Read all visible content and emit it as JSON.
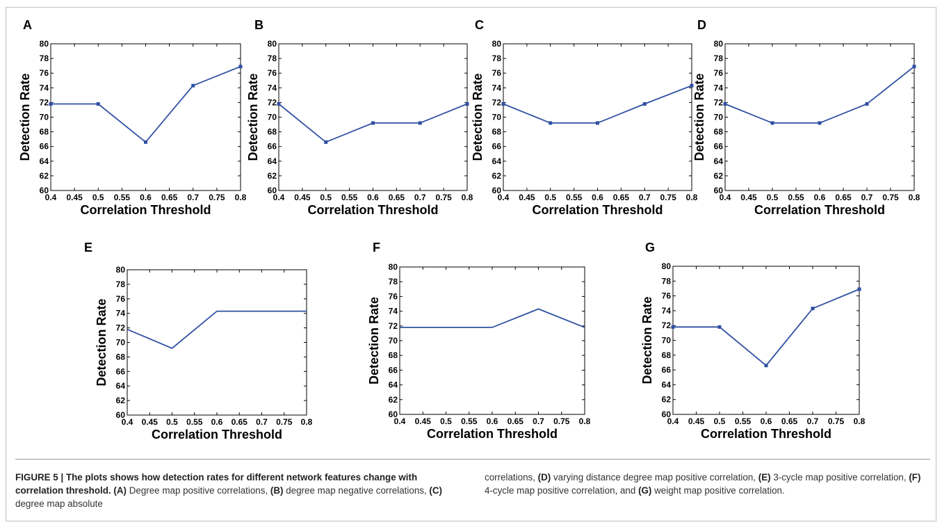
{
  "chart_data": [
    {
      "type": "line",
      "panel": "A",
      "xlabel": "Correlation Threshold",
      "ylabel": "Detection Rate",
      "xlim": [
        0.4,
        0.8
      ],
      "ylim": [
        60,
        80
      ],
      "xticks": [
        "0.4",
        "0.45",
        "0.5",
        "0.55",
        "0.6",
        "0.65",
        "0.7",
        "0.75",
        "0.8"
      ],
      "yticks": [
        "60",
        "62",
        "64",
        "66",
        "68",
        "70",
        "72",
        "74",
        "76",
        "78",
        "80"
      ],
      "x": [
        0.4,
        0.5,
        0.6,
        0.7,
        0.8
      ],
      "y": [
        71.8,
        71.8,
        66.6,
        74.3,
        76.9
      ],
      "markers": true,
      "color": "#2e4fa3"
    },
    {
      "type": "line",
      "panel": "B",
      "xlabel": "Correlation Threshold",
      "ylabel": "Detection Rate",
      "xlim": [
        0.4,
        0.8
      ],
      "ylim": [
        60,
        80
      ],
      "xticks": [
        "0.4",
        "0.45",
        "0.5",
        "0.55",
        "0.6",
        "0.65",
        "0.7",
        "0.75",
        "0.8"
      ],
      "yticks": [
        "60",
        "62",
        "64",
        "66",
        "68",
        "70",
        "72",
        "74",
        "76",
        "78",
        "80"
      ],
      "x": [
        0.4,
        0.5,
        0.6,
        0.7,
        0.8
      ],
      "y": [
        71.8,
        66.6,
        69.2,
        69.2,
        71.8
      ],
      "markers": true,
      "color": "#2e4fa3"
    },
    {
      "type": "line",
      "panel": "C",
      "xlabel": "Correlation Threshold",
      "ylabel": "Detection Rate",
      "xlim": [
        0.4,
        0.8
      ],
      "ylim": [
        60,
        80
      ],
      "xticks": [
        "0.4",
        "0.45",
        "0.5",
        "0.55",
        "0.6",
        "0.65",
        "0.7",
        "0.75",
        "0.8"
      ],
      "yticks": [
        "60",
        "62",
        "64",
        "66",
        "68",
        "70",
        "72",
        "74",
        "76",
        "78",
        "80"
      ],
      "x": [
        0.4,
        0.5,
        0.6,
        0.7,
        0.8
      ],
      "y": [
        71.8,
        69.2,
        69.2,
        71.8,
        74.3
      ],
      "markers": true,
      "color": "#2e4fa3"
    },
    {
      "type": "line",
      "panel": "D",
      "xlabel": "Correlation Threshold",
      "ylabel": "Detection Rate",
      "xlim": [
        0.4,
        0.8
      ],
      "ylim": [
        60,
        80
      ],
      "xticks": [
        "0.4",
        "0.45",
        "0.5",
        "0.55",
        "0.6",
        "0.65",
        "0.7",
        "0.75",
        "0.8"
      ],
      "yticks": [
        "60",
        "62",
        "64",
        "66",
        "68",
        "70",
        "72",
        "74",
        "76",
        "78",
        "80"
      ],
      "x": [
        0.4,
        0.5,
        0.6,
        0.7,
        0.8
      ],
      "y": [
        71.8,
        69.2,
        69.2,
        71.8,
        76.9
      ],
      "markers": true,
      "color": "#2e4fa3"
    },
    {
      "type": "line",
      "panel": "E",
      "xlabel": "Correlation Threshold",
      "ylabel": "Detection Rate",
      "xlim": [
        0.4,
        0.8
      ],
      "ylim": [
        60,
        80
      ],
      "xticks": [
        "0.4",
        "0.45",
        "0.5",
        "0.55",
        "0.6",
        "0.65",
        "0.7",
        "0.75",
        "0.8"
      ],
      "yticks": [
        "60",
        "62",
        "64",
        "66",
        "68",
        "70",
        "72",
        "74",
        "76",
        "78",
        "80"
      ],
      "x": [
        0.4,
        0.5,
        0.6,
        0.7,
        0.8
      ],
      "y": [
        71.8,
        69.2,
        74.3,
        74.3,
        74.3
      ],
      "markers": false,
      "color": "#2e4fa3"
    },
    {
      "type": "line",
      "panel": "F",
      "xlabel": "Correlation Threshold",
      "ylabel": "Detection Rate",
      "xlim": [
        0.4,
        0.8
      ],
      "ylim": [
        60,
        80
      ],
      "xticks": [
        "0.4",
        "0.45",
        "0.5",
        "0.55",
        "0.6",
        "0.65",
        "0.7",
        "0.75",
        "0.8"
      ],
      "yticks": [
        "60",
        "62",
        "64",
        "66",
        "68",
        "70",
        "72",
        "74",
        "76",
        "78",
        "80"
      ],
      "x": [
        0.4,
        0.5,
        0.6,
        0.7,
        0.8
      ],
      "y": [
        71.8,
        71.8,
        71.8,
        74.3,
        71.8
      ],
      "markers": false,
      "color": "#2e4fa3"
    },
    {
      "type": "line",
      "panel": "G",
      "xlabel": "Correlation Threshold",
      "ylabel": "Detection Rate",
      "xlim": [
        0.4,
        0.8
      ],
      "ylim": [
        60,
        80
      ],
      "xticks": [
        "0.4",
        "0.45",
        "0.5",
        "0.55",
        "0.6",
        "0.65",
        "0.7",
        "0.75",
        "0.8"
      ],
      "yticks": [
        "60",
        "62",
        "64",
        "66",
        "68",
        "70",
        "72",
        "74",
        "76",
        "78",
        "80"
      ],
      "x": [
        0.4,
        0.5,
        0.6,
        0.7,
        0.8
      ],
      "y": [
        71.8,
        71.8,
        66.6,
        74.3,
        76.9
      ],
      "markers": true,
      "color": "#2e4fa3"
    }
  ],
  "caption": {
    "figure_label": "FIGURE 5 | The plots shows how detection rates for different network features change with correlation threshold.",
    "items": [
      {
        "tag": "(A)",
        "text": " Degree map positive correlations, "
      },
      {
        "tag": "(B)",
        "text": " degree map negative correlations, "
      },
      {
        "tag": "(C)",
        "text": " degree map absolute correlations, "
      },
      {
        "tag": "(D)",
        "text": " varying distance degree map positive correlation, "
      },
      {
        "tag": "(E)",
        "text": " 3-cycle map positive correlation, "
      },
      {
        "tag": "(F)",
        "text": " 4-cycle map positive correlation, and "
      },
      {
        "tag": "(G)",
        "text": " weight map positive correlation."
      }
    ]
  }
}
